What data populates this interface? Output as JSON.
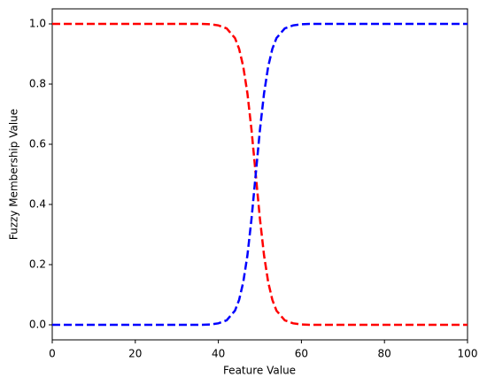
{
  "chart_data": {
    "type": "line",
    "xlabel": "Feature Value",
    "ylabel": "Fuzzy Membership Value",
    "x": [
      0,
      10,
      20,
      30,
      36,
      38,
      40,
      42,
      44,
      45,
      46,
      47,
      48,
      49,
      50,
      51,
      52,
      53,
      54,
      56,
      58,
      60,
      62,
      70,
      80,
      90,
      100
    ],
    "series": [
      {
        "color": "#ff0000",
        "values": [
          1,
          1,
          1,
          1,
          1,
          0.999,
          0.995,
          0.985,
          0.953,
          0.917,
          0.858,
          0.769,
          0.646,
          0.5,
          0.354,
          0.231,
          0.142,
          0.083,
          0.047,
          0.015,
          0.005,
          0.001,
          0,
          0,
          0,
          0,
          0
        ]
      },
      {
        "color": "#0000ff",
        "values": [
          0,
          0,
          0,
          0,
          0,
          0.001,
          0.005,
          0.015,
          0.047,
          0.083,
          0.142,
          0.231,
          0.354,
          0.5,
          0.646,
          0.769,
          0.858,
          0.917,
          0.953,
          0.985,
          0.995,
          0.999,
          1,
          1,
          1,
          1,
          1
        ]
      }
    ],
    "xlim": [
      0,
      100
    ],
    "ylim": [
      -0.05,
      1.05
    ],
    "xticks": [
      0,
      20,
      40,
      60,
      80,
      100
    ],
    "yticks": [
      {
        "value": 0,
        "label": "0.0"
      },
      {
        "value": 0.2,
        "label": "0.2"
      },
      {
        "value": 0.4,
        "label": "0.4"
      },
      {
        "value": 0.6,
        "label": "0.6"
      },
      {
        "value": 0.8,
        "label": "0.8"
      },
      {
        "value": 1,
        "label": "1.0"
      }
    ],
    "line_style": "dashed",
    "grid": false
  }
}
